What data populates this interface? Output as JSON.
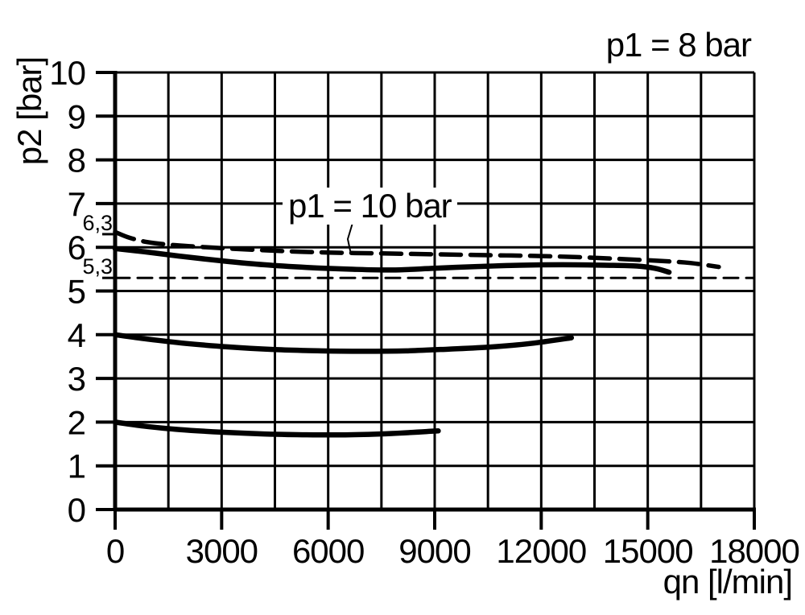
{
  "page": {
    "background": "#ffffff",
    "ink": "#000000"
  },
  "chart_data": {
    "type": "line",
    "title": "",
    "condition_label": "p1 = 8 bar",
    "annotation": {
      "text": "p1 = 10 bar"
    },
    "x_axis": {
      "label": "qn [l/min]",
      "min": 0,
      "max": 18000,
      "grid_step": 1500,
      "ticks": [
        {
          "value": 0,
          "label": "0"
        },
        {
          "value": 3000,
          "label": "3000"
        },
        {
          "value": 6000,
          "label": "6000"
        },
        {
          "value": 9000,
          "label": "9000"
        },
        {
          "value": 12000,
          "label": "12000"
        },
        {
          "value": 15000,
          "label": "15000"
        },
        {
          "value": 18000,
          "label": "18000"
        }
      ]
    },
    "y_axis": {
      "label": "p2 [bar]",
      "min": 0,
      "max": 10,
      "grid_step": 1,
      "ticks": [
        {
          "value": 0,
          "label": "0"
        },
        {
          "value": 1,
          "label": "1"
        },
        {
          "value": 2,
          "label": "2"
        },
        {
          "value": 3,
          "label": "3"
        },
        {
          "value": 4,
          "label": "4"
        },
        {
          "value": 5,
          "label": "5"
        },
        {
          "value": 6,
          "label": "6"
        },
        {
          "value": 7,
          "label": "7"
        },
        {
          "value": 8,
          "label": "8"
        },
        {
          "value": 9,
          "label": "9"
        },
        {
          "value": 10,
          "label": "10"
        }
      ],
      "extra_ticks": [
        {
          "value": 6.3,
          "label": "6,3"
        },
        {
          "value": 5.3,
          "label": "5,3"
        }
      ]
    },
    "grid": true,
    "legend_position": "none",
    "series": [
      {
        "name": "p1 = 10 bar curve",
        "style": "dashed",
        "points": [
          [
            0,
            6.35
          ],
          [
            400,
            6.22
          ],
          [
            900,
            6.12
          ],
          [
            1500,
            6.06
          ],
          [
            2200,
            6.02
          ],
          [
            3000,
            5.98
          ],
          [
            4500,
            5.92
          ],
          [
            6000,
            5.88
          ],
          [
            7500,
            5.86
          ],
          [
            9000,
            5.84
          ],
          [
            10500,
            5.82
          ],
          [
            12000,
            5.8
          ],
          [
            13200,
            5.77
          ],
          [
            14300,
            5.73
          ],
          [
            15300,
            5.69
          ],
          [
            16200,
            5.64
          ],
          [
            17000,
            5.55
          ]
        ]
      },
      {
        "name": "p1 = 8 bar, setpoint 6 bar curve",
        "style": "solid",
        "points": [
          [
            0,
            5.97
          ],
          [
            800,
            5.9
          ],
          [
            1800,
            5.8
          ],
          [
            3000,
            5.69
          ],
          [
            4200,
            5.6
          ],
          [
            5400,
            5.54
          ],
          [
            6600,
            5.5
          ],
          [
            7800,
            5.48
          ],
          [
            9000,
            5.52
          ],
          [
            10200,
            5.56
          ],
          [
            11400,
            5.59
          ],
          [
            12600,
            5.6
          ],
          [
            13800,
            5.59
          ],
          [
            14700,
            5.57
          ],
          [
            15200,
            5.52
          ],
          [
            15600,
            5.43
          ]
        ]
      },
      {
        "name": "setpoint 4 bar curve",
        "style": "solid",
        "points": [
          [
            0,
            4.0
          ],
          [
            900,
            3.9
          ],
          [
            2000,
            3.8
          ],
          [
            3200,
            3.72
          ],
          [
            4500,
            3.66
          ],
          [
            5800,
            3.63
          ],
          [
            7000,
            3.62
          ],
          [
            8200,
            3.63
          ],
          [
            9400,
            3.67
          ],
          [
            10600,
            3.72
          ],
          [
            11700,
            3.8
          ],
          [
            12850,
            3.93
          ]
        ]
      },
      {
        "name": "setpoint 2 bar curve",
        "style": "solid",
        "points": [
          [
            0,
            2.0
          ],
          [
            800,
            1.91
          ],
          [
            1800,
            1.83
          ],
          [
            3000,
            1.77
          ],
          [
            4200,
            1.73
          ],
          [
            5400,
            1.71
          ],
          [
            6600,
            1.71
          ],
          [
            7800,
            1.74
          ],
          [
            9100,
            1.8
          ]
        ]
      },
      {
        "name": "reference line 5,3 bar",
        "style": "reference-dashed",
        "points": [
          [
            0,
            5.3
          ],
          [
            18000,
            5.3
          ]
        ]
      }
    ]
  }
}
